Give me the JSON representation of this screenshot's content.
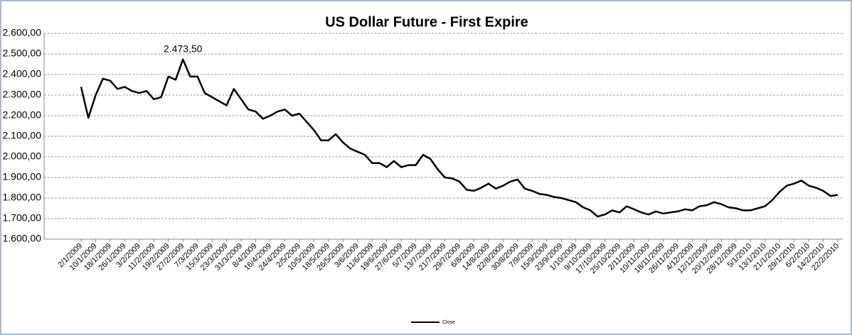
{
  "chart_data": {
    "type": "line",
    "title": "US Dollar Future - First Expire",
    "categories": [
      "2/1/2009",
      null,
      "10/1/2009",
      null,
      "18/1/2009",
      null,
      "26/1/2009",
      null,
      "3/2/2009",
      null,
      "11/2/2009",
      null,
      "19/2/2009",
      null,
      "27/2/2009",
      null,
      "7/3/2009",
      null,
      "15/3/2009",
      null,
      "23/3/2009",
      null,
      "31/3/2009",
      null,
      "8/4/2009",
      null,
      "16/4/2009",
      null,
      "24/4/2009",
      null,
      "2/5/2009",
      null,
      "10/5/2009",
      null,
      "18/5/2009",
      null,
      "26/5/2009",
      null,
      "3/6/2009",
      null,
      "11/6/2009",
      null,
      "19/6/2009",
      null,
      "27/6/2009",
      null,
      "5/7/2009",
      null,
      "13/7/2009",
      null,
      "21/7/2009",
      null,
      "29/7/2009",
      null,
      "6/8/2009",
      null,
      "14/8/2009",
      null,
      "22/8/2009",
      null,
      "30/8/2009",
      null,
      "7/9/2009",
      null,
      "15/9/2009",
      null,
      "23/9/2009",
      null,
      "1/10/2009",
      null,
      "9/10/2009",
      null,
      "17/10/2009",
      null,
      "25/10/2009",
      null,
      "2/11/2009",
      null,
      "10/11/2009",
      null,
      "18/11/2009",
      null,
      "26/11/2009",
      null,
      "4/12/2009",
      null,
      "12/12/2009",
      null,
      "20/12/2009",
      null,
      "28/12/2009",
      null,
      "5/1/2010",
      null,
      "13/1/2010",
      null,
      "21/1/2010",
      null,
      "29/1/2010",
      null,
      "6/2/2010",
      null,
      "14/2/2010",
      null,
      "22/2/2010"
    ],
    "series": [
      {
        "name": "Close",
        "color": "#000000",
        "values": [
          2340,
          2190,
          2300,
          2380,
          2370,
          2330,
          2340,
          2320,
          2310,
          2320,
          2280,
          2290,
          2390,
          2375,
          2473.5,
          2390,
          2390,
          2310,
          2290,
          2270,
          2250,
          2330,
          2280,
          2230,
          2220,
          2185,
          2200,
          2220,
          2230,
          2200,
          2210,
          2170,
          2130,
          2080,
          2080,
          2110,
          2070,
          2040,
          2025,
          2010,
          1970,
          1970,
          1950,
          1980,
          1950,
          1960,
          1960,
          2010,
          1990,
          1940,
          1900,
          1895,
          1880,
          1840,
          1835,
          1850,
          1870,
          1845,
          1860,
          1880,
          1890,
          1845,
          1835,
          1820,
          1815,
          1805,
          1800,
          1790,
          1780,
          1755,
          1740,
          1710,
          1720,
          1740,
          1730,
          1760,
          1745,
          1730,
          1720,
          1735,
          1725,
          1730,
          1735,
          1745,
          1740,
          1760,
          1765,
          1780,
          1770,
          1755,
          1750,
          1740,
          1740,
          1750,
          1760,
          1790,
          1830,
          1860,
          1870,
          1885,
          1860,
          1850,
          1835,
          1810,
          1815
        ],
        "value_labels": [
          null,
          null,
          null,
          null,
          null,
          null,
          null,
          null,
          null,
          null,
          null,
          null,
          null,
          null,
          "2.473,50",
          null,
          null,
          null,
          null,
          null,
          null,
          null,
          null,
          null,
          null,
          null,
          null,
          null,
          null,
          null,
          null,
          null,
          null,
          null,
          null,
          null,
          null,
          null,
          null,
          null,
          null,
          null,
          null,
          null,
          null,
          null,
          null,
          null,
          null,
          null,
          null,
          null,
          null,
          null,
          null,
          null,
          null,
          null,
          null,
          null,
          null,
          null,
          null,
          null,
          null,
          null,
          null,
          null,
          null,
          null,
          null,
          null,
          null,
          null,
          null,
          null,
          null,
          null,
          null,
          null,
          null,
          null,
          null,
          null,
          null,
          null,
          null,
          null,
          null,
          null,
          null,
          null,
          null,
          null,
          null,
          null,
          null,
          null,
          null,
          null,
          null,
          null,
          null,
          null,
          null
        ]
      }
    ],
    "ylim": [
      1600,
      2600
    ],
    "yticks": [
      {
        "value": 1600,
        "label": "1.600,00"
      },
      {
        "value": 1700,
        "label": "1.700,00"
      },
      {
        "value": 1800,
        "label": "1.800,00"
      },
      {
        "value": 1900,
        "label": "1.900,00"
      },
      {
        "value": 2000,
        "label": "2.000,00"
      },
      {
        "value": 2100,
        "label": "2.100,00"
      },
      {
        "value": 2200,
        "label": "2.200,00"
      },
      {
        "value": 2300,
        "label": "2.300,00"
      },
      {
        "value": 2400,
        "label": "2.400,00"
      },
      {
        "value": 2500,
        "label": "2.500,00"
      },
      {
        "value": 2600,
        "label": "2.600,00"
      }
    ],
    "grid": true,
    "legend": "bottom"
  }
}
